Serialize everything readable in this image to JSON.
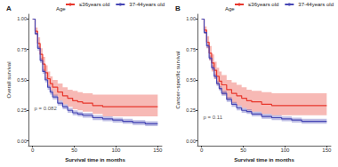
{
  "chart_data": [
    {
      "type": "line",
      "title": "A",
      "legend_title": "Age",
      "legend": "top",
      "line_style": "step",
      "grid": false,
      "x_label": "Survival time in months",
      "y_label": "Overall survival",
      "xlim": [
        -5,
        155
      ],
      "xticks": [
        0,
        50,
        100,
        150
      ],
      "ylim": [
        -0.04,
        1.04
      ],
      "yticks": [
        {
          "value": 0,
          "label": "0.00"
        },
        {
          "value": 0.25,
          "label": "0.25"
        },
        {
          "value": 0.5,
          "label": "0.50"
        },
        {
          "value": 0.75,
          "label": "0.75"
        },
        {
          "value": 1,
          "label": "1.00"
        }
      ],
      "x": [
        0,
        3,
        6,
        9,
        12,
        15,
        18,
        21,
        24,
        30,
        36,
        42,
        48,
        54,
        60,
        72,
        84,
        96,
        108,
        120,
        135,
        150
      ],
      "series": [
        {
          "name": "≤36years old",
          "color": "#e8372c",
          "values": [
            1,
            0.9,
            0.8,
            0.71,
            0.63,
            0.56,
            0.51,
            0.47,
            0.44,
            0.4,
            0.37,
            0.35,
            0.33,
            0.32,
            0.31,
            0.29,
            0.28,
            0.28,
            0.28,
            0.28,
            0.28,
            0.28
          ],
          "lower": [
            1,
            0.87,
            0.76,
            0.66,
            0.57,
            0.5,
            0.45,
            0.41,
            0.37,
            0.33,
            0.3,
            0.28,
            0.26,
            0.25,
            0.24,
            0.22,
            0.2,
            0.2,
            0.2,
            0.2,
            0.2,
            0.2
          ],
          "upper": [
            1,
            0.93,
            0.85,
            0.76,
            0.69,
            0.62,
            0.57,
            0.53,
            0.5,
            0.47,
            0.44,
            0.42,
            0.41,
            0.4,
            0.39,
            0.38,
            0.38,
            0.38,
            0.38,
            0.38,
            0.38,
            0.38
          ]
        },
        {
          "name": "37-44years old",
          "color": "#4646b4",
          "values": [
            1,
            0.88,
            0.76,
            0.66,
            0.57,
            0.5,
            0.44,
            0.4,
            0.36,
            0.31,
            0.28,
            0.25,
            0.23,
            0.22,
            0.21,
            0.19,
            0.18,
            0.17,
            0.16,
            0.15,
            0.14,
            0.14
          ],
          "lower": [
            1,
            0.87,
            0.74,
            0.64,
            0.55,
            0.48,
            0.42,
            0.38,
            0.34,
            0.29,
            0.26,
            0.23,
            0.21,
            0.2,
            0.19,
            0.17,
            0.16,
            0.15,
            0.14,
            0.13,
            0.12,
            0.12
          ],
          "upper": [
            1,
            0.89,
            0.78,
            0.68,
            0.59,
            0.52,
            0.46,
            0.42,
            0.38,
            0.33,
            0.3,
            0.27,
            0.25,
            0.24,
            0.23,
            0.21,
            0.2,
            0.19,
            0.18,
            0.17,
            0.16,
            0.16
          ]
        }
      ],
      "annotations": [
        {
          "text": "p = 0.082",
          "x": 2,
          "y": 0.27
        }
      ]
    },
    {
      "type": "line",
      "title": "B",
      "legend_title": "Age",
      "legend": "top",
      "line_style": "step",
      "grid": false,
      "x_label": "Survival time in months",
      "y_label": "Cancer−specific survival",
      "xlim": [
        -5,
        155
      ],
      "xticks": [
        0,
        50,
        100,
        150
      ],
      "ylim": [
        -0.04,
        1.04
      ],
      "yticks": [
        {
          "value": 0,
          "label": "0.00"
        },
        {
          "value": 0.25,
          "label": "0.25"
        },
        {
          "value": 0.5,
          "label": "0.50"
        },
        {
          "value": 0.75,
          "label": "0.75"
        },
        {
          "value": 1,
          "label": "1.00"
        }
      ],
      "x": [
        0,
        3,
        6,
        9,
        12,
        15,
        18,
        21,
        24,
        30,
        36,
        42,
        48,
        54,
        60,
        72,
        84,
        96,
        108,
        120,
        135,
        150
      ],
      "series": [
        {
          "name": "≤36years old",
          "color": "#e8372c",
          "values": [
            1,
            0.91,
            0.81,
            0.72,
            0.64,
            0.58,
            0.53,
            0.49,
            0.46,
            0.42,
            0.39,
            0.37,
            0.35,
            0.33,
            0.32,
            0.3,
            0.29,
            0.29,
            0.29,
            0.29,
            0.29,
            0.29
          ],
          "lower": [
            1,
            0.88,
            0.76,
            0.66,
            0.57,
            0.51,
            0.46,
            0.42,
            0.38,
            0.34,
            0.31,
            0.29,
            0.27,
            0.25,
            0.24,
            0.22,
            0.21,
            0.21,
            0.21,
            0.21,
            0.21,
            0.21
          ],
          "upper": [
            1,
            0.94,
            0.86,
            0.78,
            0.71,
            0.65,
            0.6,
            0.57,
            0.54,
            0.5,
            0.48,
            0.46,
            0.44,
            0.42,
            0.41,
            0.4,
            0.39,
            0.39,
            0.39,
            0.39,
            0.39,
            0.39
          ]
        },
        {
          "name": "37-44years old",
          "color": "#4646b4",
          "values": [
            1,
            0.89,
            0.78,
            0.68,
            0.6,
            0.53,
            0.47,
            0.43,
            0.39,
            0.34,
            0.3,
            0.27,
            0.25,
            0.24,
            0.22,
            0.2,
            0.19,
            0.18,
            0.17,
            0.16,
            0.16,
            0.16
          ],
          "lower": [
            1,
            0.88,
            0.76,
            0.66,
            0.58,
            0.51,
            0.45,
            0.41,
            0.37,
            0.32,
            0.28,
            0.25,
            0.23,
            0.22,
            0.2,
            0.18,
            0.17,
            0.16,
            0.15,
            0.14,
            0.14,
            0.14
          ],
          "upper": [
            1,
            0.9,
            0.8,
            0.7,
            0.62,
            0.55,
            0.49,
            0.45,
            0.41,
            0.36,
            0.32,
            0.29,
            0.27,
            0.26,
            0.24,
            0.22,
            0.21,
            0.2,
            0.19,
            0.18,
            0.18,
            0.18
          ]
        }
      ],
      "annotations": [
        {
          "text": "p = 0.11",
          "x": 2,
          "y": 0.19
        }
      ]
    }
  ]
}
